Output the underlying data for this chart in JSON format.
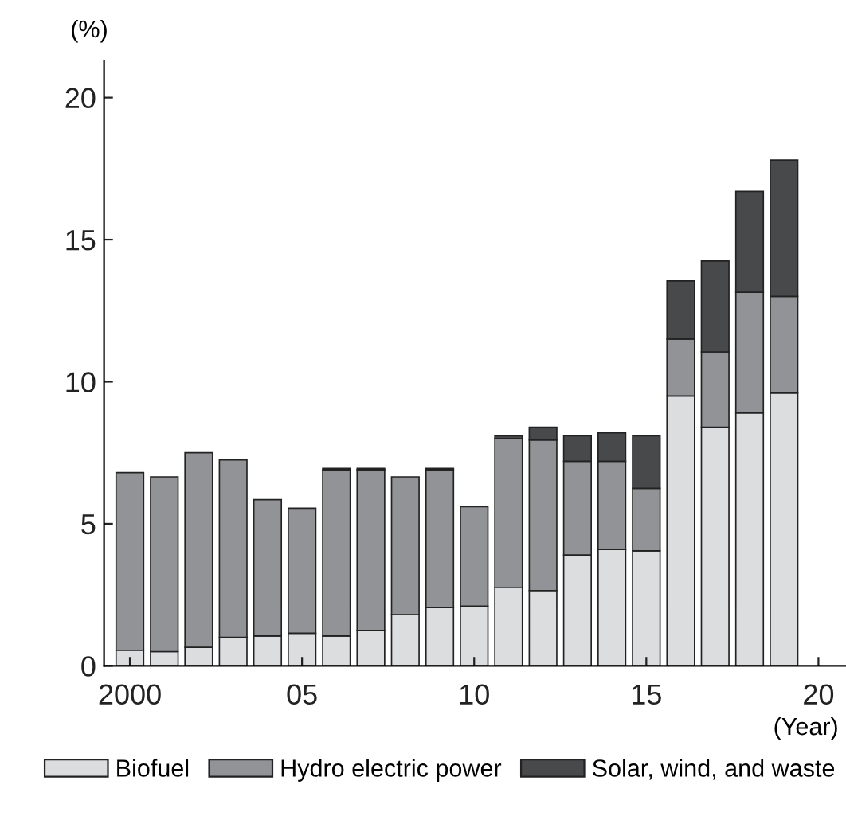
{
  "chart_data": {
    "type": "bar",
    "stacked": true,
    "ylabel": "(%)",
    "xlabel": "(Year)",
    "x": [
      2000,
      2001,
      2002,
      2003,
      2004,
      2005,
      2006,
      2007,
      2008,
      2009,
      2010,
      2011,
      2012,
      2013,
      2014,
      2015,
      2016,
      2017,
      2018,
      2019
    ],
    "series": [
      {
        "name": "Biofuel",
        "color": "#dcdddf",
        "values": [
          0.55,
          0.5,
          0.65,
          1.0,
          1.05,
          1.15,
          1.05,
          1.25,
          1.8,
          2.05,
          2.1,
          2.75,
          2.65,
          3.9,
          4.1,
          4.05,
          9.5,
          8.4,
          8.9,
          9.6
        ]
      },
      {
        "name": "Hydro electric power",
        "color": "#929396",
        "values": [
          6.25,
          6.15,
          6.85,
          6.25,
          4.8,
          4.4,
          5.85,
          5.65,
          4.85,
          4.85,
          3.5,
          5.25,
          5.3,
          3.3,
          3.1,
          2.2,
          2.0,
          2.65,
          4.25,
          3.4
        ]
      },
      {
        "name": "Solar, wind, and waste",
        "color": "#48494b",
        "values": [
          null,
          null,
          null,
          null,
          null,
          null,
          0.05,
          0.05,
          null,
          0.05,
          null,
          0.1,
          0.45,
          0.9,
          1.0,
          1.85,
          2.05,
          3.2,
          3.55,
          4.8
        ]
      }
    ],
    "xlim": [
      1999.25,
      2020.8
    ],
    "xticks": [
      {
        "value": 2000,
        "label": "2000"
      },
      {
        "value": 2005,
        "label": "05"
      },
      {
        "value": 2010,
        "label": "10"
      },
      {
        "value": 2015,
        "label": "15"
      },
      {
        "value": 2020,
        "label": "20"
      }
    ],
    "ylim": [
      0,
      21.3
    ],
    "yticks": [
      0,
      5,
      10,
      15,
      20
    ],
    "grid": false,
    "legend": "bottom"
  }
}
